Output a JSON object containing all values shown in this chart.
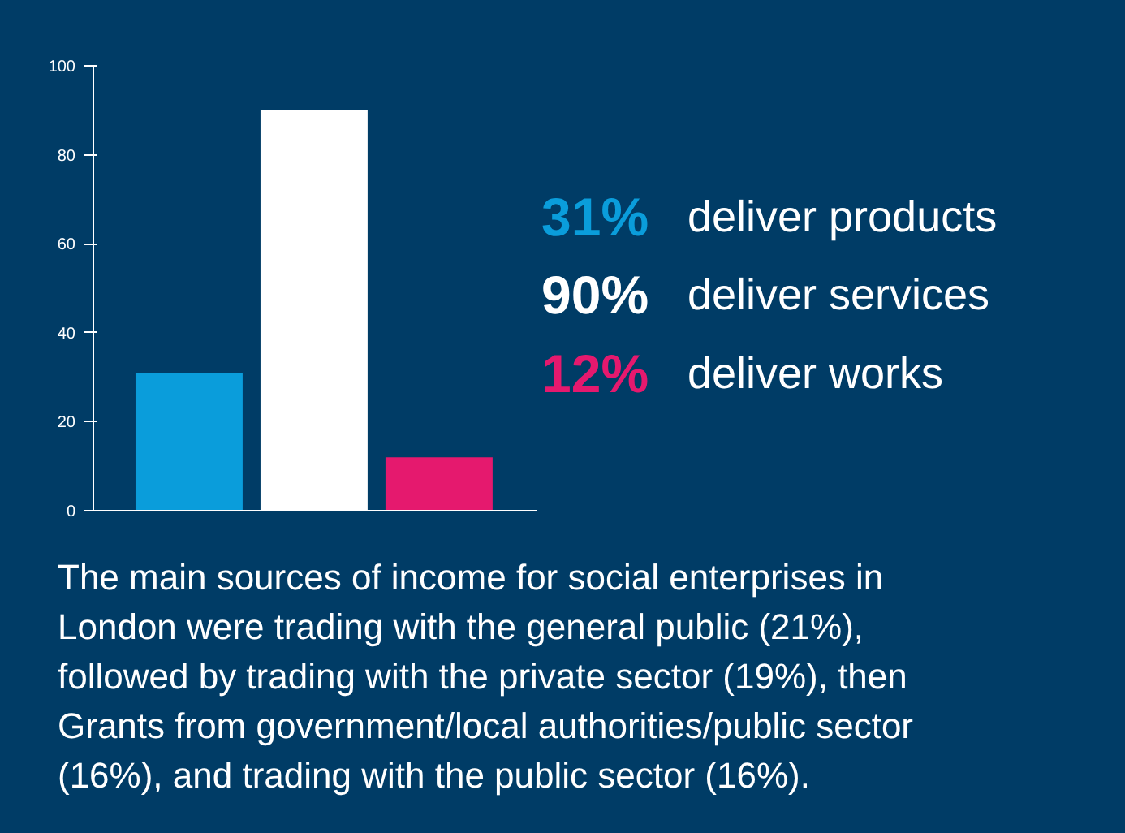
{
  "chart_data": {
    "type": "bar",
    "categories": [
      null,
      null,
      null
    ],
    "series": [
      {
        "name": "31% deliver products",
        "color": "#0a9ddb",
        "values": [
          31,
          null,
          null
        ]
      },
      {
        "name": "90% deliver services",
        "color": "#ffffff",
        "values": [
          null,
          90,
          null
        ]
      },
      {
        "name": "12% deliver works",
        "color": "#e5196e",
        "values": [
          null,
          null,
          12
        ]
      }
    ],
    "ylim": [
      0,
      100
    ],
    "yticks": [
      0,
      20,
      40,
      60,
      80,
      100
    ],
    "tick_labels": "y",
    "grid": false,
    "annotations": [
      "The main sources of income for social enterprises in London were trading with the general public (21%), followed by trading with the private sector (19%), then Grants from government/local authorities/public sector (16%), and trading with the public sector (16%)."
    ]
  }
}
